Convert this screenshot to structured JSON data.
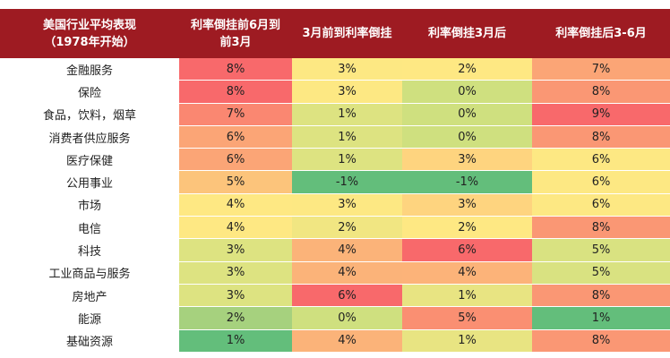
{
  "header": {
    "col0": [
      "美国行业平均表现",
      "（1978年开始）"
    ],
    "col1": [
      "利率倒挂前6月到",
      "前3月"
    ],
    "col2": "3月前到利率倒挂",
    "col3": "利率倒挂3月后",
    "col4": "利率倒挂后3-6月"
  },
  "colors": {
    "header_bg": "#9e1b22",
    "scale_low": "#63be7b",
    "scale_mid": "#ffe984",
    "scale_high": "#f8696b"
  },
  "rows": [
    {
      "sector": "金融服务",
      "values": [
        "8%",
        "3%",
        "2%",
        "7%"
      ],
      "colors": [
        "#f8696b",
        "#fde883",
        "#fee883",
        "#fba576"
      ]
    },
    {
      "sector": "保险",
      "values": [
        "8%",
        "3%",
        "0%",
        "8%"
      ],
      "colors": [
        "#f8696b",
        "#fde883",
        "#cfe07f",
        "#fa9774"
      ]
    },
    {
      "sector": "食品，饮料，烟草",
      "values": [
        "7%",
        "1%",
        "0%",
        "9%"
      ],
      "colors": [
        "#fa8771",
        "#dde381",
        "#cfe07f",
        "#f8696b"
      ]
    },
    {
      "sector": "消费者供应服务",
      "values": [
        "6%",
        "1%",
        "0%",
        "8%"
      ],
      "colors": [
        "#fba576",
        "#dde381",
        "#cfe07f",
        "#fa9774"
      ]
    },
    {
      "sector": "医疗保健",
      "values": [
        "6%",
        "1%",
        "3%",
        "6%"
      ],
      "colors": [
        "#fba576",
        "#dde381",
        "#fed47f",
        "#fde883"
      ]
    },
    {
      "sector": "公用事业",
      "values": [
        "5%",
        "-1%",
        "-1%",
        "6%"
      ],
      "colors": [
        "#fcc47b",
        "#63be7b",
        "#63be7b",
        "#fde883"
      ]
    },
    {
      "sector": "市场",
      "values": [
        "4%",
        "3%",
        "3%",
        "6%"
      ],
      "colors": [
        "#fee883",
        "#fde883",
        "#fed47f",
        "#fde883"
      ]
    },
    {
      "sector": "电信",
      "values": [
        "4%",
        "2%",
        "2%",
        "8%"
      ],
      "colors": [
        "#fee883",
        "#f1e682",
        "#fee883",
        "#fa9774"
      ]
    },
    {
      "sector": "科技",
      "values": [
        "3%",
        "4%",
        "6%",
        "5%"
      ],
      "colors": [
        "#dde381",
        "#fbb379",
        "#f8696b",
        "#d9e281"
      ]
    },
    {
      "sector": "工业商品与服务",
      "values": [
        "3%",
        "4%",
        "4%",
        "5%"
      ],
      "colors": [
        "#dde381",
        "#fbb379",
        "#fcb379",
        "#d9e281"
      ]
    },
    {
      "sector": "房地产",
      "values": [
        "3%",
        "6%",
        "1%",
        "8%"
      ],
      "colors": [
        "#dde381",
        "#f8696b",
        "#e8e482",
        "#fa9774"
      ]
    },
    {
      "sector": "能源",
      "values": [
        "2%",
        "0%",
        "5%",
        "1%"
      ],
      "colors": [
        "#a6d17e",
        "#cfe07f",
        "#fa8f72",
        "#63be7b"
      ]
    },
    {
      "sector": "基础资源",
      "values": [
        "1%",
        "4%",
        "1%",
        "8%"
      ],
      "colors": [
        "#63be7b",
        "#fbb379",
        "#e8e482",
        "#fa9774"
      ]
    }
  ]
}
